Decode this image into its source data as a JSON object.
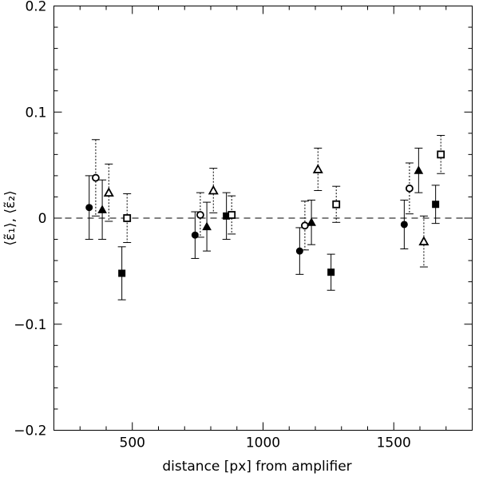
{
  "chart_data": {
    "type": "scatter",
    "title": "",
    "xlabel": "distance [px] from amplifier",
    "ylabel": "⟨ε̃₁⟩, ⟨ε̃₂⟩",
    "xlim": [
      200,
      1800
    ],
    "ylim": [
      -0.2,
      0.2
    ],
    "x_ticks": [
      500,
      1000,
      1500
    ],
    "y_ticks": [
      -0.2,
      -0.1,
      0,
      0.1,
      0.2
    ],
    "x_tick_labels": [
      "500",
      "1000",
      "1500"
    ],
    "y_tick_labels": [
      "−0.2",
      "−0.1",
      "0",
      "0.1",
      "0.2"
    ],
    "grid": false,
    "reference_line": {
      "y": 0,
      "style": "dashed"
    },
    "series": [
      {
        "marker": "filled-circle",
        "errorbar": "solid",
        "points": [
          {
            "x": 335,
            "y": 0.01,
            "err": 0.03
          },
          {
            "x": 740,
            "y": -0.016,
            "err": 0.022
          },
          {
            "x": 1140,
            "y": -0.031,
            "err": 0.022
          },
          {
            "x": 1540,
            "y": -0.006,
            "err": 0.023
          }
        ]
      },
      {
        "marker": "open-circle",
        "errorbar": "dotted",
        "points": [
          {
            "x": 360,
            "y": 0.038,
            "err": 0.036
          },
          {
            "x": 760,
            "y": 0.003,
            "err": 0.021
          },
          {
            "x": 1160,
            "y": -0.007,
            "err": 0.023
          },
          {
            "x": 1560,
            "y": 0.028,
            "err": 0.024
          }
        ]
      },
      {
        "marker": "filled-triangle",
        "errorbar": "solid",
        "points": [
          {
            "x": 385,
            "y": 0.008,
            "err": 0.028
          },
          {
            "x": 785,
            "y": -0.008,
            "err": 0.023
          },
          {
            "x": 1185,
            "y": -0.004,
            "err": 0.021
          },
          {
            "x": 1595,
            "y": 0.045,
            "err": 0.021
          }
        ]
      },
      {
        "marker": "open-triangle",
        "errorbar": "dotted",
        "points": [
          {
            "x": 410,
            "y": 0.024,
            "err": 0.027
          },
          {
            "x": 810,
            "y": 0.026,
            "err": 0.021
          },
          {
            "x": 1210,
            "y": 0.046,
            "err": 0.02
          },
          {
            "x": 1615,
            "y": -0.022,
            "err": 0.024
          }
        ]
      },
      {
        "marker": "filled-square",
        "errorbar": "solid",
        "points": [
          {
            "x": 460,
            "y": -0.052,
            "err": 0.025
          },
          {
            "x": 860,
            "y": 0.002,
            "err": 0.022
          },
          {
            "x": 1260,
            "y": -0.051,
            "err": 0.017
          },
          {
            "x": 1660,
            "y": 0.013,
            "err": 0.018
          }
        ]
      },
      {
        "marker": "open-square",
        "errorbar": "dotted",
        "points": [
          {
            "x": 480,
            "y": 0.0,
            "err": 0.023
          },
          {
            "x": 880,
            "y": 0.003,
            "err": 0.018
          },
          {
            "x": 1280,
            "y": 0.013,
            "err": 0.017
          },
          {
            "x": 1680,
            "y": 0.06,
            "err": 0.018
          }
        ]
      }
    ]
  }
}
